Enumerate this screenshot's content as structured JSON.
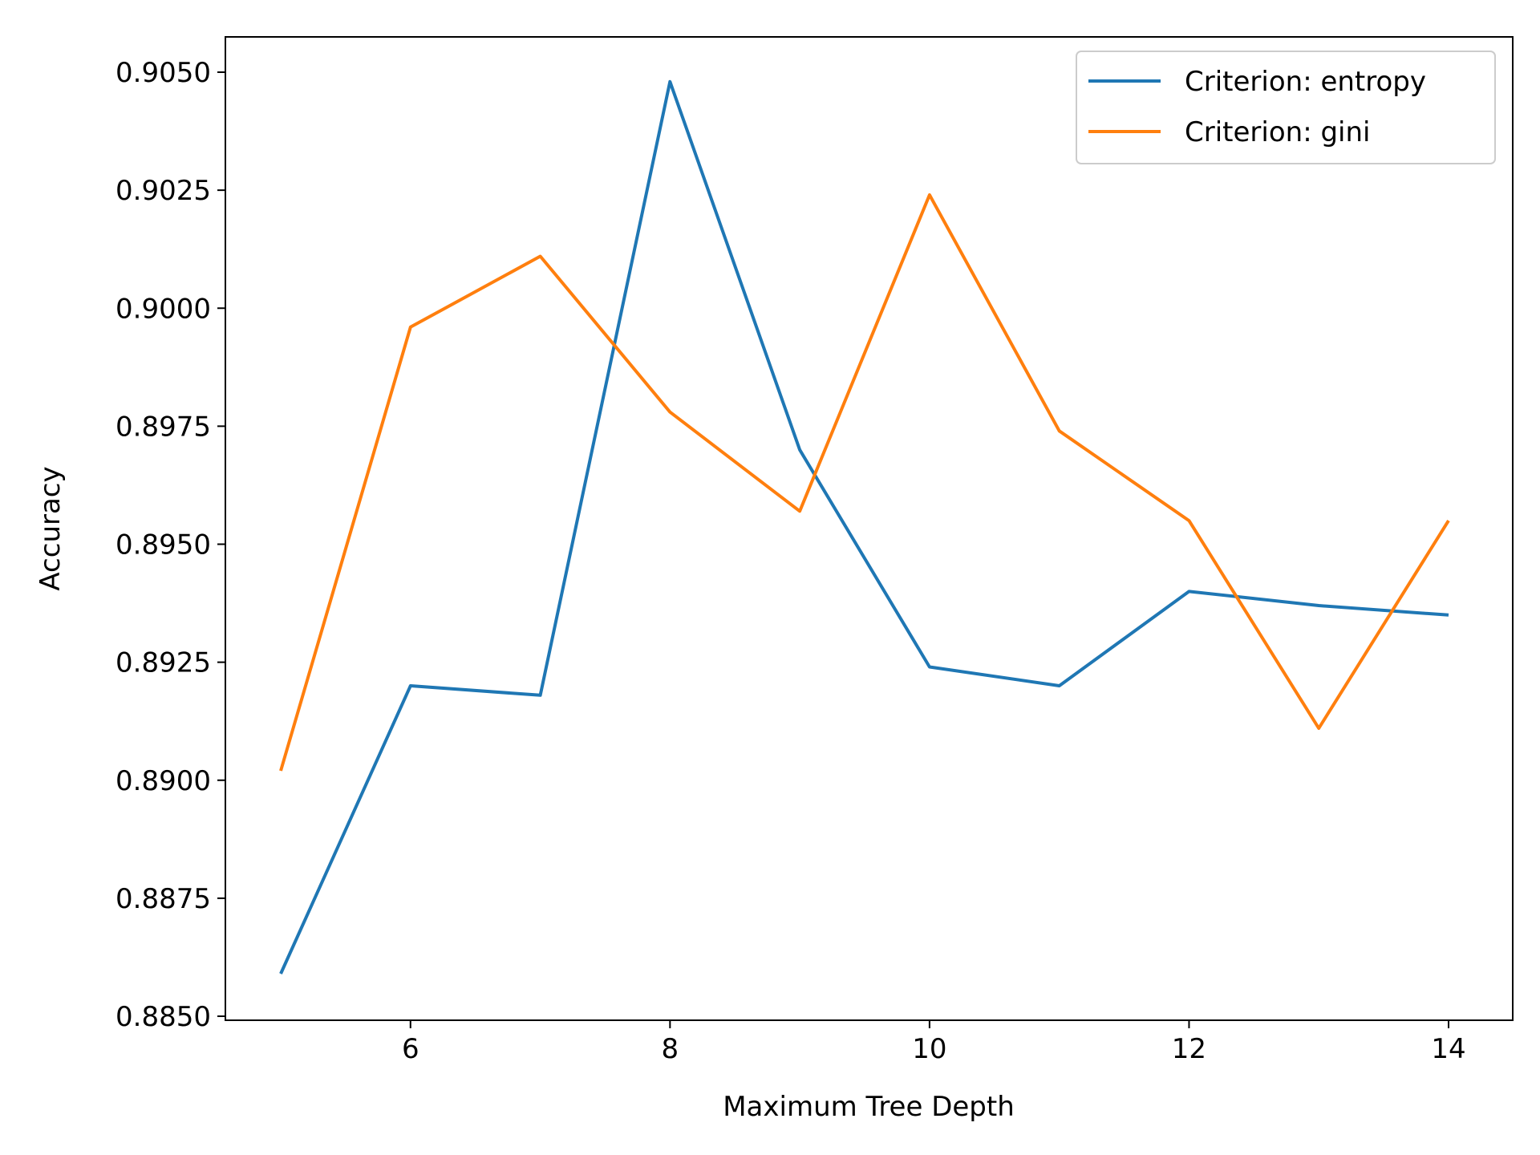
{
  "chart_data": {
    "type": "line",
    "title": "",
    "xlabel": "Maximum Tree Depth",
    "ylabel": "Accuracy",
    "xlim": [
      4.55,
      14.45
    ],
    "ylim": [
      0.885,
      0.9058
    ],
    "xticks": [
      6,
      8,
      10,
      12,
      14
    ],
    "xtick_labels": [
      "6",
      "8",
      "10",
      "12",
      "14"
    ],
    "yticks": [
      0.885,
      0.8875,
      0.89,
      0.8925,
      0.895,
      0.8975,
      0.9,
      0.9025,
      0.905
    ],
    "ytick_labels": [
      "0.8850",
      "0.8875",
      "0.8900",
      "0.8925",
      "0.8950",
      "0.8975",
      "0.9000",
      "0.9025",
      "0.9050"
    ],
    "grid": false,
    "legend_position": "upper right",
    "x": [
      5,
      6,
      7,
      8,
      9,
      10,
      11,
      12,
      13,
      14
    ],
    "series": [
      {
        "name": "Criterion: entropy",
        "color": "#1f77b4",
        "values": [
          0.8859,
          0.892,
          0.8918,
          0.9048,
          0.897,
          0.8924,
          0.892,
          0.894,
          0.8937,
          0.8935
        ]
      },
      {
        "name": "Criterion: gini",
        "color": "#ff7f0e",
        "values": [
          0.8902,
          0.8996,
          0.9011,
          0.8978,
          0.8957,
          0.9024,
          0.8974,
          0.8955,
          0.8911,
          0.8955
        ]
      }
    ]
  }
}
